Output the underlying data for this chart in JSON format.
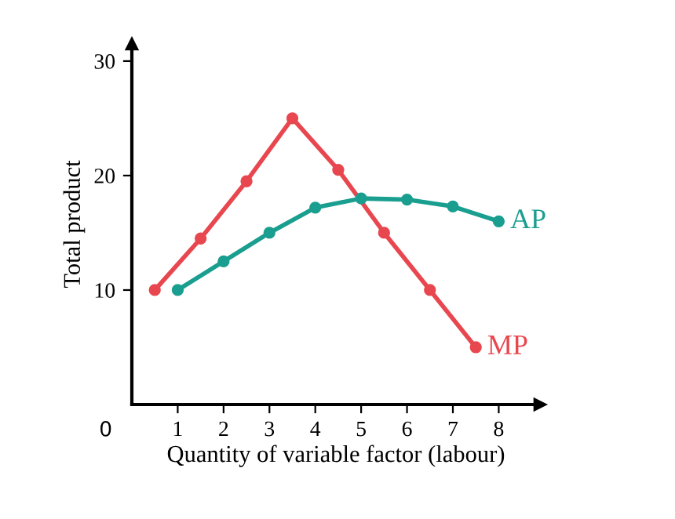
{
  "chart_data": {
    "type": "line",
    "xlabel": "Quantity of variable factor (labour)",
    "ylabel": "Total product",
    "annotations": [
      "0"
    ],
    "marker": "circle",
    "line_style": "solid",
    "grid": false,
    "legend": false,
    "xlim": [
      0,
      8.9
    ],
    "ylim": [
      0,
      31.5
    ],
    "xticks": [
      1,
      2,
      3,
      4,
      5,
      6,
      7,
      8
    ],
    "yticks": [
      10,
      20,
      30
    ],
    "series": [
      {
        "name": "MP",
        "color": "#e8474f",
        "x": [
          0.5,
          1.5,
          2.5,
          3.5,
          4.5,
          5.5,
          6.5,
          7.5
        ],
        "values": [
          10,
          14.5,
          19.5,
          25,
          20.5,
          15,
          10,
          5
        ]
      },
      {
        "name": "AP",
        "color": "#1a9e8f",
        "x": [
          1,
          2,
          3,
          4,
          5,
          6,
          7,
          8
        ],
        "values": [
          10,
          12.5,
          15,
          17.2,
          18,
          17.9,
          17.3,
          16
        ]
      }
    ]
  }
}
